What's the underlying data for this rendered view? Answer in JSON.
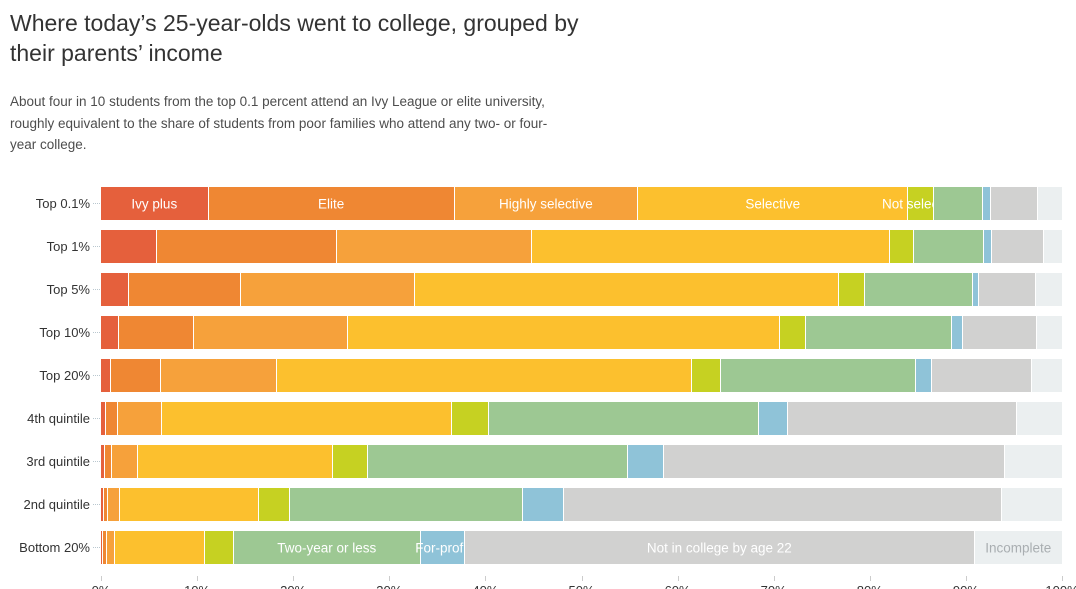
{
  "header": {
    "title": "Where today’s 25-year-olds went to college, grouped by their parents’ income",
    "subtitle": "About four in 10 students from the top 0.1 percent attend an Ivy League or elite university, roughly equivalent to the share of students from poor families who attend any two- or four-year college."
  },
  "colors": {
    "ivy_plus": "#e5603c",
    "elite": "#ef8733",
    "highly_selective": "#f6a13b",
    "selective": "#fcc02e",
    "not_selective": "#c6d122",
    "two_year_or_less": "#9dc893",
    "for_profit": "#8fc3d8",
    "not_in_college": "#d1d1d0",
    "incomplete": "#ebeff0",
    "tick": "#cccccc",
    "text": "#333333",
    "incomplete_label_text": "#a9aeb1"
  },
  "chart_data": {
    "type": "bar",
    "stacked": true,
    "orientation": "horizontal",
    "unit": "percent",
    "xlim": [
      0,
      100
    ],
    "x_ticks": [
      {
        "label": "0%",
        "value": 0
      },
      {
        "label": "10%",
        "value": 10
      },
      {
        "label": "20%",
        "value": 20
      },
      {
        "label": "30%",
        "value": 30
      },
      {
        "label": "40%",
        "value": 40
      },
      {
        "label": "50%",
        "value": 50
      },
      {
        "label": "60%",
        "value": 60
      },
      {
        "label": "70%",
        "value": 70
      },
      {
        "label": "80%",
        "value": 80
      },
      {
        "label": "90%",
        "value": 90
      },
      {
        "label": "100%",
        "value": 100
      }
    ],
    "categories": [
      "Top 0.1%",
      "Top 1%",
      "Top 5%",
      "Top 10%",
      "Top 20%",
      "4th quintile",
      "3rd quintile",
      "2nd quintile",
      "Bottom 20%"
    ],
    "series": [
      {
        "id": "ivy-plus",
        "name": "Ivy plus",
        "color_key": "ivy_plus",
        "label_row": 0,
        "label_dark": false,
        "values": [
          11.2,
          5.8,
          2.9,
          1.9,
          1.0,
          0.5,
          0.4,
          0.3,
          0.2
        ]
      },
      {
        "id": "elite",
        "name": "Elite",
        "color_key": "elite",
        "label_row": 0,
        "label_dark": false,
        "values": [
          25.6,
          18.8,
          11.7,
          7.8,
          5.2,
          1.3,
          0.7,
          0.4,
          0.4
        ]
      },
      {
        "id": "highly-selective",
        "name": "Highly selective",
        "color_key": "highly_selective",
        "label_row": 0,
        "label_dark": false,
        "values": [
          19.1,
          20.2,
          18.1,
          16.0,
          12.1,
          4.5,
          2.7,
          1.3,
          0.9
        ]
      },
      {
        "id": "selective",
        "name": "Selective",
        "color_key": "selective",
        "label_row": 0,
        "label_dark": false,
        "values": [
          28.1,
          37.3,
          44.1,
          45.0,
          43.2,
          30.2,
          20.3,
          14.4,
          9.3
        ]
      },
      {
        "id": "not-selective",
        "name": "Not selective",
        "color_key": "not_selective",
        "label_row": 0,
        "label_dark": false,
        "values": [
          2.7,
          2.5,
          2.7,
          2.7,
          3.0,
          3.9,
          3.7,
          3.3,
          3.0
        ]
      },
      {
        "id": "two-year-or-less",
        "name": "Two-year or less",
        "color_key": "two_year_or_less",
        "label_row": 8,
        "label_dark": false,
        "values": [
          5.1,
          7.3,
          11.2,
          15.2,
          20.3,
          28.1,
          27.0,
          24.2,
          19.5
        ]
      },
      {
        "id": "for-profit",
        "name": "For-profit",
        "color_key": "for_profit",
        "label_row": 8,
        "label_dark": false,
        "values": [
          0.8,
          0.8,
          0.7,
          1.1,
          1.7,
          3.0,
          3.8,
          4.3,
          4.6
        ]
      },
      {
        "id": "not-in-college",
        "name": "Not in college by age 22",
        "color_key": "not_in_college",
        "label_row": 8,
        "label_dark": false,
        "values": [
          4.9,
          5.4,
          5.9,
          7.7,
          10.4,
          23.8,
          35.5,
          45.6,
          53.0
        ]
      },
      {
        "id": "incomplete",
        "name": "Incomplete",
        "color_key": "incomplete",
        "label_row": 8,
        "label_dark": true,
        "values": [
          2.5,
          1.9,
          2.7,
          2.6,
          3.1,
          4.7,
          5.9,
          6.2,
          9.1
        ]
      }
    ]
  }
}
